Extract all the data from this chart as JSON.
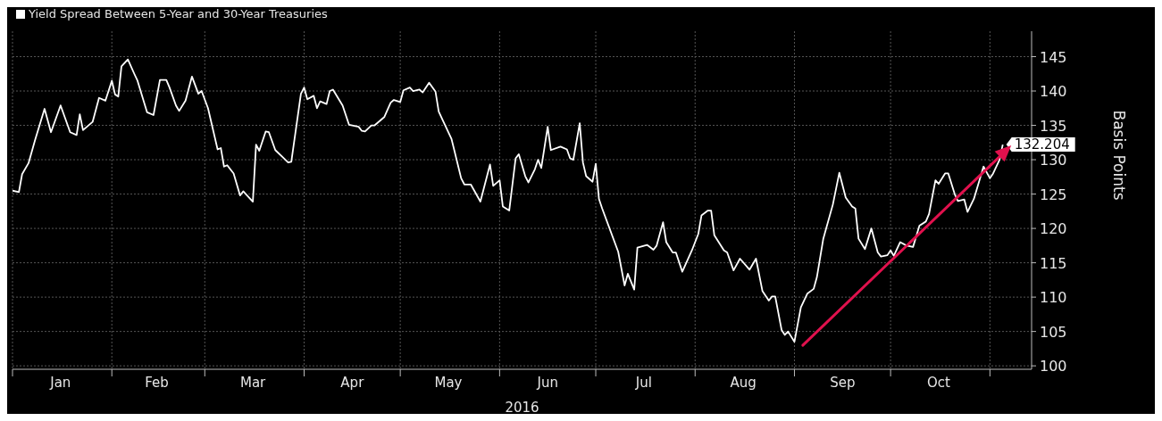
{
  "chart_data": {
    "type": "line",
    "xlabel": "2016",
    "ylabel": "Basis Points",
    "legend": "top left",
    "grid": true,
    "marker": "none",
    "line_style": "solid",
    "xlim": [
      "2016-01-01",
      "2016-11-14"
    ],
    "xticks": [
      {
        "value": "2016-01-01",
        "label": null
      },
      {
        "value": "2016-01-16",
        "label": "Jan"
      },
      {
        "value": "2016-02-01",
        "label": null
      },
      {
        "value": "2016-02-15",
        "label": "Feb"
      },
      {
        "value": "2016-03-01",
        "label": null
      },
      {
        "value": "2016-03-16",
        "label": "Mar"
      },
      {
        "value": "2016-04-01",
        "label": null
      },
      {
        "value": "2016-04-16",
        "label": "Apr"
      },
      {
        "value": "2016-05-01",
        "label": null
      },
      {
        "value": "2016-05-16",
        "label": "May"
      },
      {
        "value": "2016-06-01",
        "label": null
      },
      {
        "value": "2016-06-16",
        "label": "Jun"
      },
      {
        "value": "2016-07-01",
        "label": null
      },
      {
        "value": "2016-07-16",
        "label": "Jul"
      },
      {
        "value": "2016-08-01",
        "label": null
      },
      {
        "value": "2016-08-16",
        "label": "Aug"
      },
      {
        "value": "2016-09-01",
        "label": null
      },
      {
        "value": "2016-09-16",
        "label": "Sep"
      },
      {
        "value": "2016-10-01",
        "label": null
      },
      {
        "value": "2016-10-16",
        "label": "Oct"
      },
      {
        "value": "2016-11-01",
        "label": null
      }
    ],
    "ylim": [
      99.5,
      148.7
    ],
    "yticks": [
      100,
      105,
      110,
      115,
      120,
      125,
      130,
      135,
      140,
      145
    ],
    "series": [
      {
        "name": "Yield Spread Between 5-Year and 30-Year Treasuries",
        "color": "#ffffff",
        "x": [
          "2016-01-01",
          "2016-01-03",
          "2016-01-04",
          "2016-01-06",
          "2016-01-08",
          "2016-01-11",
          "2016-01-13",
          "2016-01-16",
          "2016-01-19",
          "2016-01-21",
          "2016-01-22",
          "2016-01-23",
          "2016-01-26",
          "2016-01-28",
          "2016-01-30",
          "2016-02-01",
          "2016-02-02",
          "2016-02-03",
          "2016-02-04",
          "2016-02-06",
          "2016-02-08",
          "2016-02-09",
          "2016-02-12",
          "2016-02-14",
          "2016-02-16",
          "2016-02-18",
          "2016-02-19",
          "2016-02-21",
          "2016-02-22",
          "2016-02-24",
          "2016-02-26",
          "2016-02-28",
          "2016-02-29",
          "2016-03-02",
          "2016-03-05",
          "2016-03-06",
          "2016-03-07",
          "2016-03-08",
          "2016-03-10",
          "2016-03-12",
          "2016-03-13",
          "2016-03-14",
          "2016-03-16",
          "2016-03-17",
          "2016-03-18",
          "2016-03-20",
          "2016-03-21",
          "2016-03-23",
          "2016-03-25",
          "2016-03-27",
          "2016-03-28",
          "2016-03-31",
          "2016-04-01",
          "2016-04-02",
          "2016-04-04",
          "2016-04-05",
          "2016-04-06",
          "2016-04-08",
          "2016-04-09",
          "2016-04-10",
          "2016-04-13",
          "2016-04-15",
          "2016-04-18",
          "2016-04-19",
          "2016-04-20",
          "2016-04-22",
          "2016-04-23",
          "2016-04-26",
          "2016-04-28",
          "2016-04-29",
          "2016-05-01",
          "2016-05-02",
          "2016-05-04",
          "2016-05-05",
          "2016-05-07",
          "2016-05-08",
          "2016-05-10",
          "2016-05-12",
          "2016-05-13",
          "2016-05-17",
          "2016-05-20",
          "2016-05-21",
          "2016-05-23",
          "2016-05-26",
          "2016-05-29",
          "2016-05-30",
          "2016-06-01",
          "2016-06-02",
          "2016-06-04",
          "2016-06-06",
          "2016-06-07",
          "2016-06-09",
          "2016-06-10",
          "2016-06-12",
          "2016-06-13",
          "2016-06-14",
          "2016-06-16",
          "2016-06-17",
          "2016-06-20",
          "2016-06-22",
          "2016-06-23",
          "2016-06-24",
          "2016-06-26",
          "2016-06-27",
          "2016-06-28",
          "2016-06-30",
          "2016-07-01",
          "2016-07-02",
          "2016-07-03",
          "2016-07-08",
          "2016-07-10",
          "2016-07-11",
          "2016-07-13",
          "2016-07-14",
          "2016-07-17",
          "2016-07-19",
          "2016-07-20",
          "2016-07-22",
          "2016-07-23",
          "2016-07-25",
          "2016-07-26",
          "2016-07-28",
          "2016-07-31",
          "2016-08-02",
          "2016-08-03",
          "2016-08-05",
          "2016-08-06",
          "2016-08-07",
          "2016-08-10",
          "2016-08-11",
          "2016-08-13",
          "2016-08-15",
          "2016-08-18",
          "2016-08-20",
          "2016-08-22",
          "2016-08-24",
          "2016-08-25",
          "2016-08-26",
          "2016-08-28",
          "2016-08-29",
          "2016-08-30",
          "2016-09-01",
          "2016-09-03",
          "2016-09-05",
          "2016-09-07",
          "2016-09-08",
          "2016-09-10",
          "2016-09-13",
          "2016-09-15",
          "2016-09-17",
          "2016-09-19",
          "2016-09-20",
          "2016-09-21",
          "2016-09-23",
          "2016-09-24",
          "2016-09-25",
          "2016-09-27",
          "2016-09-28",
          "2016-09-30",
          "2016-10-01",
          "2016-10-02",
          "2016-10-04",
          "2016-10-06",
          "2016-10-08",
          "2016-10-10",
          "2016-10-12",
          "2016-10-13",
          "2016-10-15",
          "2016-10-16",
          "2016-10-18",
          "2016-10-19",
          "2016-10-21",
          "2016-10-22",
          "2016-10-24",
          "2016-10-25",
          "2016-10-27",
          "2016-10-30",
          "2016-11-01",
          "2016-11-02",
          "2016-11-04",
          "2016-11-05"
        ],
        "values": [
          125.5,
          125.3,
          127.9,
          129.5,
          132.8,
          137.4,
          134.0,
          137.9,
          134.0,
          133.6,
          136.6,
          134.3,
          135.5,
          139.0,
          138.6,
          141.5,
          139.5,
          139.2,
          143.6,
          144.6,
          142.5,
          141.5,
          136.9,
          136.5,
          141.6,
          141.6,
          140.5,
          137.9,
          137.1,
          138.6,
          142.1,
          139.6,
          140.0,
          137.5,
          131.5,
          131.7,
          129.0,
          129.2,
          128.0,
          124.8,
          125.4,
          124.9,
          123.9,
          132.2,
          131.3,
          134.1,
          134.0,
          131.4,
          130.5,
          129.6,
          129.7,
          139.6,
          140.5,
          138.8,
          139.3,
          137.5,
          138.5,
          138.1,
          140.0,
          140.2,
          137.9,
          135.1,
          134.8,
          134.2,
          134.1,
          135.0,
          135.0,
          136.2,
          138.3,
          138.7,
          138.4,
          140.1,
          140.5,
          140.0,
          140.2,
          139.8,
          141.2,
          139.9,
          137.0,
          133.0,
          127.3,
          126.4,
          126.4,
          123.9,
          129.3,
          126.2,
          127.0,
          123.2,
          122.6,
          130.2,
          130.8,
          127.6,
          126.7,
          128.6,
          130.0,
          128.8,
          134.8,
          131.4,
          131.9,
          131.5,
          130.2,
          130.0,
          135.3,
          129.6,
          127.6,
          126.8,
          129.4,
          124.3,
          122.9,
          116.6,
          111.7,
          113.4,
          111.1,
          117.2,
          117.6,
          116.9,
          117.5,
          120.9,
          118.0,
          116.5,
          116.5,
          113.7,
          116.8,
          119.2,
          121.9,
          122.6,
          122.6,
          119.0,
          116.8,
          116.5,
          113.9,
          115.6,
          114.0,
          115.6,
          110.9,
          109.5,
          110.1,
          110.1,
          105.2,
          104.5,
          105.0,
          103.5,
          108.5,
          110.5,
          111.2,
          112.9,
          118.5,
          123.5,
          128.1,
          124.5,
          123.2,
          122.9,
          118.5,
          117.0,
          118.5,
          120.0,
          116.5,
          115.9,
          116.1,
          116.8,
          116.0,
          118.0,
          117.5,
          117.3,
          120.4,
          121.0,
          122.1,
          127.0,
          126.5,
          128.0,
          128.0,
          125.0,
          124.0,
          124.2,
          122.4,
          124.3,
          129.0,
          127.3,
          128.0,
          130.0,
          132.204
        ],
        "value_labels": [
          null,
          null,
          null,
          null,
          null,
          null,
          null,
          null,
          null,
          null,
          null,
          null,
          null,
          null,
          null,
          null,
          null,
          null,
          null,
          null,
          null,
          null,
          null,
          null,
          null,
          null,
          null,
          null,
          null,
          null,
          null,
          null,
          null,
          null,
          null,
          null,
          null,
          null,
          null,
          null,
          null,
          null,
          null,
          null,
          null,
          null,
          null,
          null,
          null,
          null,
          null,
          null,
          null,
          null,
          null,
          null,
          null,
          null,
          null,
          null,
          null,
          null,
          null,
          null,
          null,
          null,
          null,
          null,
          null,
          null,
          null,
          null,
          null,
          null,
          null,
          null,
          null,
          null,
          null,
          null,
          null,
          null,
          null,
          null,
          null,
          null,
          null,
          null,
          null,
          null,
          null,
          null,
          null,
          null,
          null,
          null,
          null,
          null,
          null,
          null,
          null,
          null,
          null,
          null,
          null,
          null,
          null,
          null,
          null,
          null,
          null,
          null,
          null,
          null,
          null,
          null,
          null,
          null,
          null,
          null,
          null,
          null,
          null,
          null,
          null,
          null,
          null,
          null,
          null,
          null,
          null,
          null,
          null,
          null,
          null,
          null,
          null,
          null,
          null,
          null,
          null,
          null,
          null,
          null,
          null,
          null,
          null,
          null,
          null,
          null,
          null,
          null,
          null,
          null,
          null,
          null,
          null,
          null,
          null,
          null,
          null,
          null,
          null,
          null,
          null,
          null,
          null,
          null,
          null,
          null,
          null,
          null,
          null,
          null,
          null,
          null,
          null,
          null,
          null,
          null,
          "132.204"
        ]
      }
    ]
  }
}
